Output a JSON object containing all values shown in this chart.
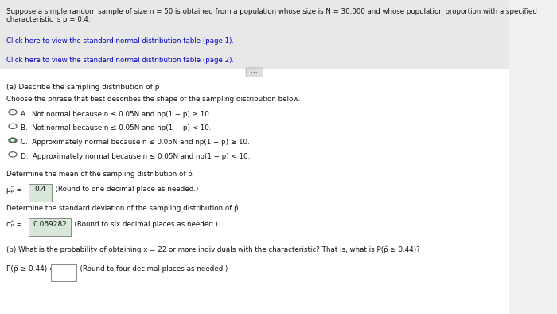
{
  "background_color": "#f0f0f0",
  "header_text": "Suppose a simple random sample of size n = 50 is obtained from a population whose size is N = 30,000 and whose population proportion with a specified characteristic is p = 0.4.",
  "link1": "Click here to view the standard normal distribution table (page 1).",
  "link2": "Click here to view the standard normal distribution table (page 2).",
  "part_a_title": "(a) Describe the sampling distribution of p̂",
  "part_a_sub": "Choose the phrase that best describes the shape of the sampling distribution below.",
  "option_A": "A.  Not normal because n ≤ 0.05N and np(1 − p) ≥ 10.",
  "option_B": "B.  Not normal because n ≤ 0.05N and np(1 − p) < 10.",
  "option_C": "C.  Approximately normal because n ≤ 0.05N and np(1 − p) ≥ 10.",
  "option_D": "D.  Approximately normal because n ≤ 0.05N and np(1 − p) < 10.",
  "selected_option": "C",
  "mean_label": "Determine the mean of the sampling distribution of p̂",
  "std_label": "Determine the standard deviation of the sampling distribution of p̂",
  "part_b_title": "(b) What is the probability of obtaining x = 22 or more individuals with the characteristic? That is, what is P(p̂ ≥ 0.44)?",
  "panel_bg": "#e8e8e8",
  "white_bg": "#ffffff",
  "link_color": "#0000cc",
  "text_color": "#111111"
}
